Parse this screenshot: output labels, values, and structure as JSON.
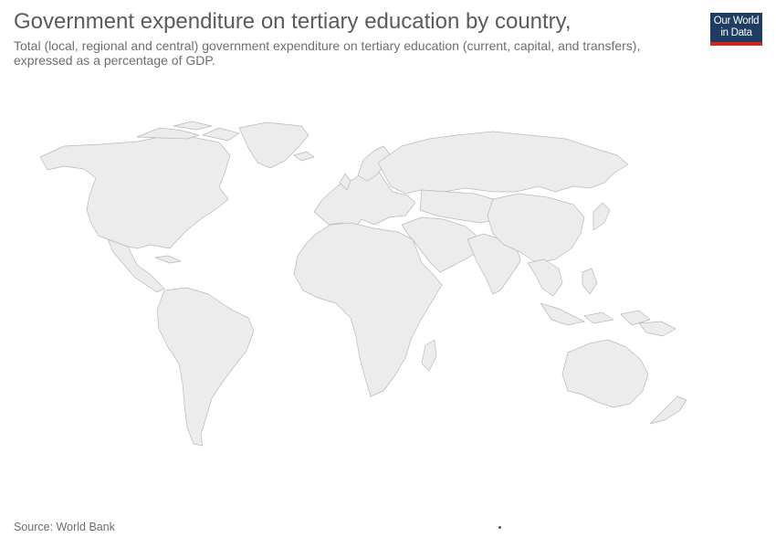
{
  "header": {
    "title": "Government expenditure on tertiary education by country,",
    "subtitle": "Total (local, regional and central) government expenditure on tertiary education (current, capital, and transfers), expressed as a percentage of GDP."
  },
  "logo": {
    "text": "Our World in Data"
  },
  "footer": {
    "source": "Source: World Bank"
  },
  "colors": {
    "land_fill": "#ececec",
    "border": "#b9b9b9",
    "logo_bg": "#1d3d63",
    "logo_accent": "#ce261e"
  },
  "map": {
    "projection": "robinson",
    "data_shown": false
  }
}
